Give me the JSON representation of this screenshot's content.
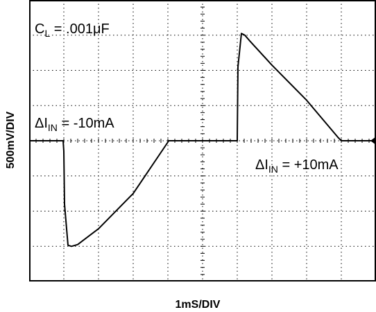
{
  "chart_data": {
    "type": "line",
    "title": "",
    "xlabel": "1mS/DIV",
    "ylabel": "500mV/DIV",
    "xlim": [
      0,
      10
    ],
    "ylim": [
      -4,
      4
    ],
    "x_divisions": 10,
    "y_divisions": 8,
    "grid": true,
    "grid_style": "dotted",
    "trace_color": "#000000",
    "annotations": [
      {
        "main": "C",
        "sub": "L",
        "rest": " = .001μF"
      },
      {
        "main": "ΔI",
        "sub": "IN",
        "rest": " = -10mA"
      },
      {
        "main": "ΔI",
        "sub": "IN",
        "rest": " = +10mA"
      }
    ],
    "series": [
      {
        "x": [
          0,
          0.98,
          1.0,
          1.02,
          1.12,
          1.22,
          1.4,
          2.0,
          3.0,
          4.0,
          4.02,
          5.0,
          6.0,
          6.0,
          6.02,
          6.12,
          6.22,
          6.35,
          7.0,
          8.0,
          8.9,
          9.0,
          10.0
        ],
        "y": [
          0,
          0,
          -0.3,
          -1.8,
          -2.97,
          -3.0,
          -2.95,
          -2.5,
          -1.5,
          -0.04,
          0,
          0,
          0,
          0.05,
          2.1,
          3.05,
          3.0,
          2.85,
          2.15,
          1.15,
          0.1,
          0,
          0
        ]
      }
    ]
  }
}
